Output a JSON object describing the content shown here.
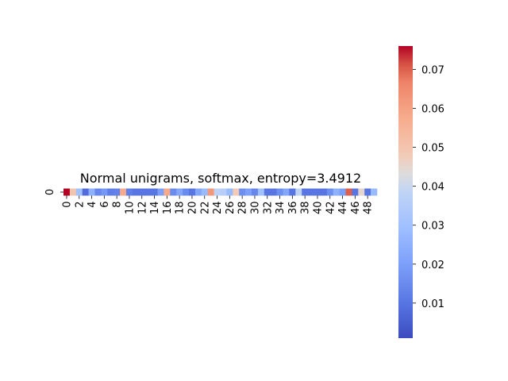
{
  "chart_data": {
    "type": "heatmap",
    "title": "Normal unigrams, softmax, entropy=3.4912",
    "row_labels": [
      "0"
    ],
    "x_tick_labels": [
      "0",
      "2",
      "4",
      "6",
      "8",
      "10",
      "12",
      "14",
      "16",
      "18",
      "20",
      "22",
      "24",
      "26",
      "28",
      "30",
      "32",
      "34",
      "36",
      "38",
      "40",
      "42",
      "44",
      "46",
      "48"
    ],
    "values": [
      [
        0.076,
        0.05,
        0.03,
        0.008,
        0.025,
        0.014,
        0.018,
        0.012,
        0.013,
        0.058,
        0.012,
        0.01,
        0.01,
        0.01,
        0.01,
        0.02,
        0.058,
        0.015,
        0.022,
        0.015,
        0.01,
        0.022,
        0.028,
        0.062,
        0.038,
        0.036,
        0.028,
        0.048,
        0.016,
        0.02,
        0.014,
        0.03,
        0.01,
        0.01,
        0.016,
        0.022,
        0.01,
        0.038,
        0.01,
        0.01,
        0.01,
        0.01,
        0.016,
        0.025,
        0.02,
        0.07,
        0.01,
        0.045,
        0.01,
        0.028
      ]
    ],
    "colormap": "coolwarm",
    "colorbar": {
      "vmin": 0.001,
      "vmax": 0.076,
      "ticks": [
        0.01,
        0.02,
        0.03,
        0.04,
        0.05,
        0.06,
        0.07
      ],
      "tick_labels": [
        "0.01",
        "0.02",
        "0.03",
        "0.04",
        "0.05",
        "0.06",
        "0.07"
      ]
    }
  }
}
